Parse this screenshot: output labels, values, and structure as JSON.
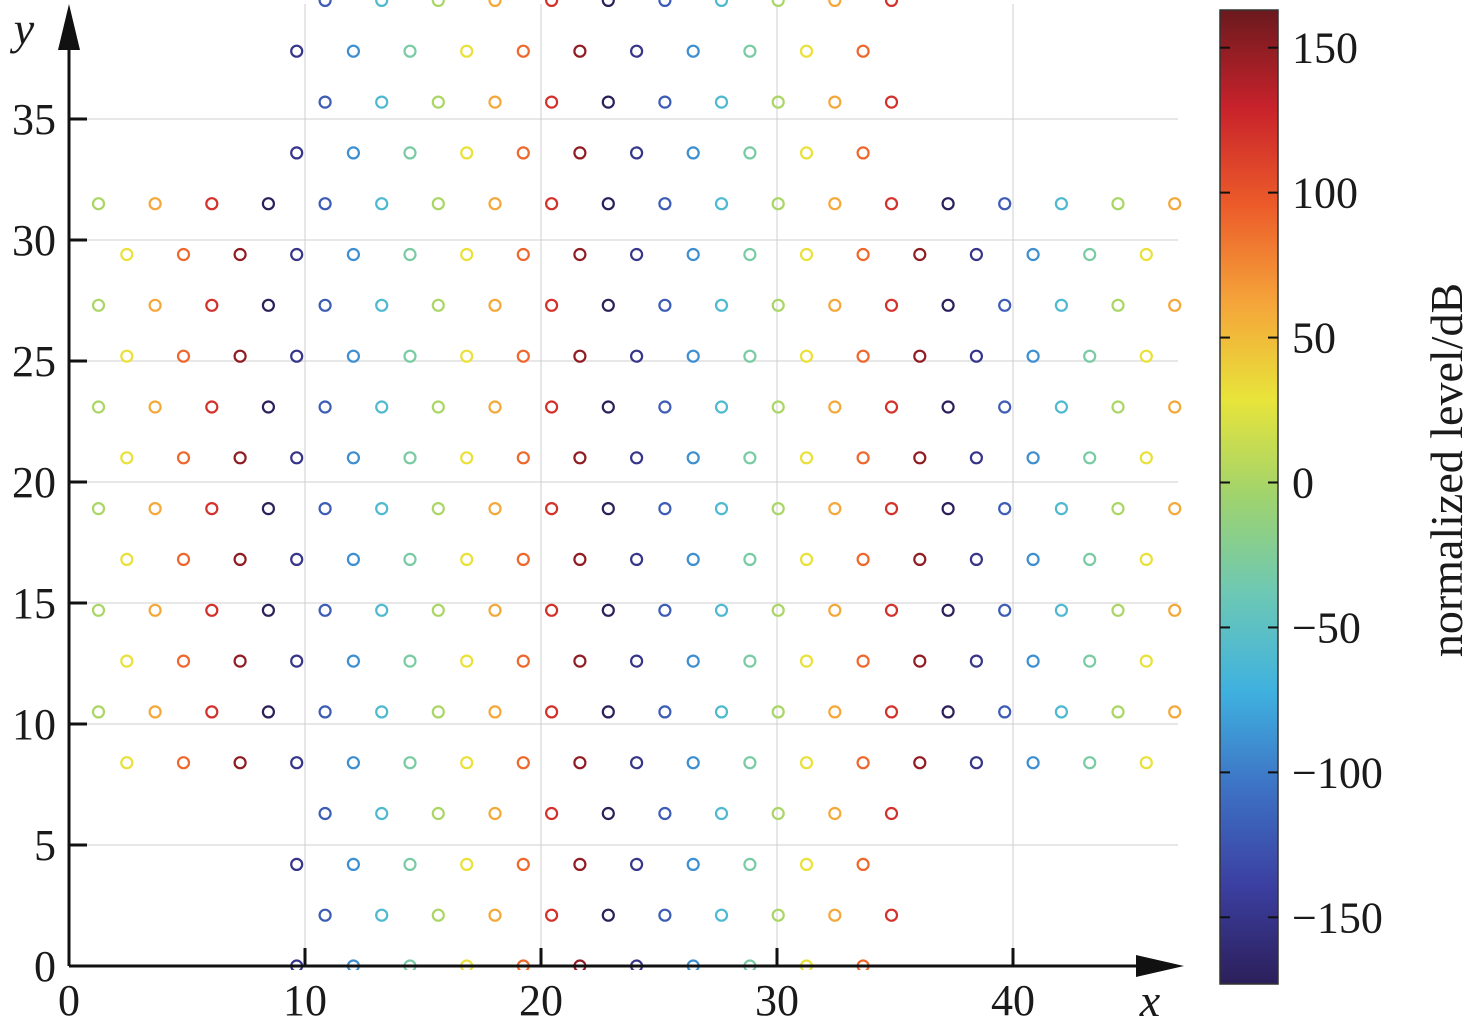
{
  "chart_data": {
    "type": "scatter",
    "marker": "open-circle",
    "xlabel": "x",
    "ylabel": "y",
    "xlim": [
      0,
      47
    ],
    "ylim": [
      0,
      38
    ],
    "xticks": [
      0,
      10,
      20,
      30,
      40
    ],
    "yticks": [
      0,
      5,
      10,
      15,
      20,
      25,
      30,
      35
    ],
    "grid": true,
    "colorbar": {
      "label": "normalized level/dB",
      "range": [
        -173,
        163
      ],
      "ticks": [
        150,
        100,
        50,
        0,
        -50,
        -100,
        -150
      ],
      "tick_labels": [
        "150",
        "100",
        "50",
        "0",
        "−50",
        "−100",
        "−150"
      ],
      "colormap": [
        "#2c1f5a",
        "#3b3fa0",
        "#3d71c4",
        "#3fb1df",
        "#6cc8b5",
        "#9fd36e",
        "#e8e43a",
        "#f5a43a",
        "#ec5b2a",
        "#c8222b",
        "#6b1a1e"
      ]
    },
    "lattice": {
      "pitch": 2.4,
      "row_spacing": 2.1,
      "x0": 1.25,
      "phase_step_deg": 60,
      "rows": [
        {
          "y": 0.0,
          "x_start": 9.65,
          "x_end": 36.0
        },
        {
          "y": 2.1,
          "x_start": 10.85,
          "x_end": 37.2
        },
        {
          "y": 4.2,
          "x_start": 9.65,
          "x_end": 36.0
        },
        {
          "y": 6.3,
          "x_start": 10.85,
          "x_end": 37.2
        },
        {
          "y": 8.4,
          "x_start": 2.45,
          "x_end": 45.7
        },
        {
          "y": 10.5,
          "x_start": 1.25,
          "x_end": 46.9
        },
        {
          "y": 12.6,
          "x_start": 2.45,
          "x_end": 45.7
        },
        {
          "y": 14.7,
          "x_start": 1.25,
          "x_end": 46.9
        },
        {
          "y": 16.8,
          "x_start": 2.45,
          "x_end": 45.7
        },
        {
          "y": 18.9,
          "x_start": 1.25,
          "x_end": 46.9
        },
        {
          "y": 21.0,
          "x_start": 2.45,
          "x_end": 45.7
        },
        {
          "y": 23.1,
          "x_start": 1.25,
          "x_end": 46.9
        },
        {
          "y": 25.2,
          "x_start": 2.45,
          "x_end": 45.7
        },
        {
          "y": 27.3,
          "x_start": 1.25,
          "x_end": 46.9
        },
        {
          "y": 29.4,
          "x_start": 2.45,
          "x_end": 45.7
        },
        {
          "y": 31.5,
          "x_start": 1.25,
          "x_end": 46.9
        },
        {
          "y": 33.6,
          "x_start": 9.65,
          "x_end": 36.0
        },
        {
          "y": 35.7,
          "x_start": 10.85,
          "x_end": 37.2
        },
        {
          "y": 37.8,
          "x_start": 9.65,
          "x_end": 36.0
        },
        {
          "y": 39.9,
          "x_start": 10.85,
          "x_end": 37.2
        }
      ]
    }
  }
}
